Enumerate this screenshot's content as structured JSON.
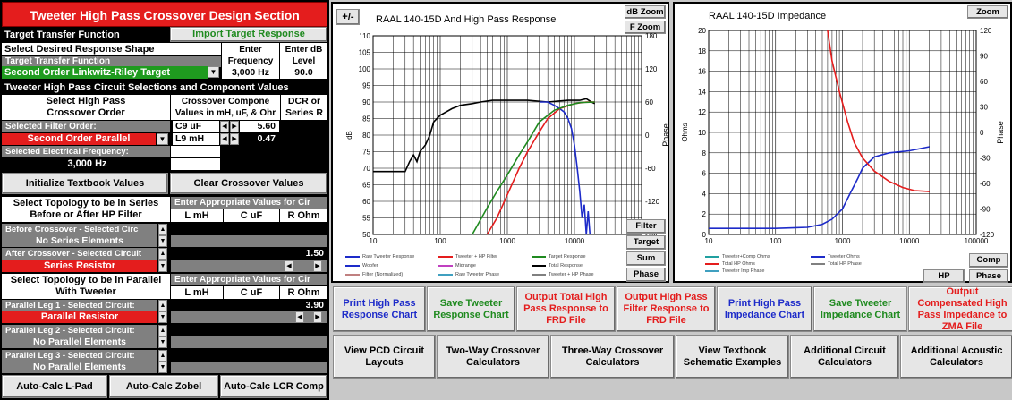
{
  "left": {
    "title": "Tweeter High Pass Crossover Design Section",
    "target_transfer_function": "Target Transfer Function",
    "import_target_response": "Import Target Response",
    "select_response_shape": "Select Desired Response Shape",
    "enter_frequency": "Enter Frequency",
    "enter_db_level": "Enter dB Level",
    "target_transfer_function_2": "Target Transfer Function",
    "target_selected": "Second Order Linkwitz-Riley Target",
    "frequency_value": "3,000 Hz",
    "db_level_value": "90.0",
    "circuit_selections_header": "Tweeter High Pass Circuit Selections and Component Values",
    "select_hp_order_line1": "Select High Pass",
    "select_hp_order_line2": "Crossover Order",
    "crossover_component_line1": "Crossover Compone",
    "crossover_component_line2": "Values in mH, uF, & Ohr",
    "dcr_line1": "DCR or",
    "dcr_line2": "Series R",
    "selected_filter_order_label": "Selected Filter Order:",
    "filter_order_value": "Second Order Parallel",
    "comp1_label": "C9  uF",
    "comp1_value": "5.60",
    "comp2_label": "L9 mH",
    "comp2_value": "0.47",
    "selected_elec_freq_label": "Selected Electrical Frequency:",
    "elec_freq_value": "3,000 Hz",
    "initialize_textbook_values": "Initialize Textbook Values",
    "clear_crossover_values": "Clear Crossover Values",
    "series_topology_line1": "Select Topology to be in Series",
    "series_topology_line2": "Before or After HP Filter",
    "enter_values_header": "Enter Appropriate Values for Cir",
    "col_l": "L mH",
    "col_c": "C uF",
    "col_r": "R Ohm",
    "before_crossover_label": "Before Crossover - Selected Circ",
    "before_crossover_value": "No Series Elements",
    "after_crossover_label": "After Crossover - Selected Circuit",
    "after_crossover_value": "Series Resistor",
    "after_r_value": "1.50",
    "parallel_topology_line1": "Select Topology to be in Parallel",
    "parallel_topology_line2": "With Tweeter",
    "enter_values_header_2": "Enter Appropriate Values for Cir",
    "leg1_label": "Parallel Leg 1 - Selected Circuit:",
    "leg1_value": "Parallel Resistor",
    "leg1_r_value": "3.90",
    "leg2_label": "Parallel Leg 2 - Selected Circuit:",
    "leg2_value": "No Parallel Elements",
    "leg3_label": "Parallel Leg 3 - Selected Circuit:",
    "leg3_value": "No Parallel Elements",
    "auto_calc_lpad": "Auto-Calc L-Pad",
    "auto_calc_zobel": "Auto-Calc Zobel",
    "auto_calc_lcr": "Auto-Calc LCR Comp"
  },
  "chart1": {
    "plus_minus": "+/-",
    "title": "RAAL 140-15D  And High Pass Response",
    "db_zoom": "dB Zoom",
    "f_zoom": "F Zoom",
    "ylabel": "dB",
    "y2label": "Phase",
    "filter_btn": "Filter",
    "target_btn": "Target",
    "sum_btn": "Sum",
    "phase_btn": "Phase",
    "legend": [
      {
        "name": "Raw Tweeter Response",
        "color": "#1d2bc9"
      },
      {
        "name": "Tweeter + HP Filter",
        "color": "#e41d1d"
      },
      {
        "name": "Target Response",
        "color": "#1f8a1f"
      },
      {
        "name": "Woofer",
        "color": "#1d2bc9"
      },
      {
        "name": "Midrange",
        "color": "#c040c0"
      },
      {
        "name": "Total Response",
        "color": "#000000"
      },
      {
        "name": "Filter (Normalized)",
        "color": "#c08080"
      },
      {
        "name": "Raw Tweeter Phase",
        "color": "#40a0c0"
      },
      {
        "name": "Tweeter + HP Phase",
        "color": "#808080"
      }
    ]
  },
  "chart2": {
    "title": "RAAL 140-15D  Impedance",
    "zoom": "Zoom",
    "ylabel": "Ohms",
    "y2label": "Phase",
    "comp_btn": "Comp",
    "phase_btn": "Phase",
    "hp_btn": "HP",
    "legend": [
      {
        "name": "Tweeter+Comp Ohms",
        "color": "#20a0a0"
      },
      {
        "name": "Tweeter Ohms",
        "color": "#1d2bc9"
      },
      {
        "name": "Total HP Ohms",
        "color": "#e41d1d"
      },
      {
        "name": "Total HP Phase",
        "color": "#808080"
      },
      {
        "name": "Tweeter Imp Phase",
        "color": "#40a0c0"
      }
    ]
  },
  "bottom_buttons_row1": [
    {
      "label": "Print High Pass Response Chart",
      "color": "blue"
    },
    {
      "label": "Save Tweeter Response Chart",
      "color": "green"
    },
    {
      "label": "Output Total High Pass Response to FRD File",
      "color": "red"
    },
    {
      "label": "Output High Pass Filter Response to FRD File",
      "color": "red"
    },
    {
      "label": "Print High Pass Impedance Chart",
      "color": "blue"
    },
    {
      "label": "Save Tweeter Impedance Chart",
      "color": "green"
    },
    {
      "label": "Output Compensated High Pass Impedance to ZMA File",
      "color": "red"
    }
  ],
  "bottom_buttons_row2": [
    {
      "label": "View PCD Circuit Layouts"
    },
    {
      "label": "Two-Way Crossover Calculators"
    },
    {
      "label": "Three-Way Crossover Calculators"
    },
    {
      "label": "View Textbook Schematic Examples"
    },
    {
      "label": "Additional Circuit Calculators"
    },
    {
      "label": "Additional Acoustic Calculators"
    }
  ],
  "chart_data": [
    {
      "type": "line",
      "title": "RAAL 140-15D  And High Pass Response",
      "xscale": "log",
      "xlim": [
        10,
        100000
      ],
      "ylim": [
        50,
        110
      ],
      "y2lim": [
        -180,
        180
      ],
      "ylabel": "dB",
      "y2label": "Phase",
      "x_ticks": [
        "10",
        "100",
        "1000",
        "10000",
        "100000"
      ],
      "y_ticks": [
        50,
        55,
        60,
        65,
        70,
        75,
        80,
        85,
        90,
        95,
        100,
        105,
        110
      ],
      "y2_ticks": [
        -180,
        -120,
        -60,
        0,
        60,
        120,
        180
      ],
      "grid": true,
      "legend_position": "bottom",
      "series": [
        {
          "name": "Total Response",
          "color": "#000000",
          "x": [
            10,
            20,
            30,
            35,
            40,
            45,
            50,
            60,
            70,
            80,
            100,
            150,
            200,
            300,
            400,
            600,
            1000,
            2000,
            4000,
            8000,
            12000,
            15000,
            18000,
            20000
          ],
          "y": [
            69,
            69,
            69,
            72,
            74,
            72,
            75,
            77,
            80,
            84,
            86,
            88,
            89,
            89.5,
            90,
            90.5,
            90.5,
            90.5,
            90,
            90.5,
            90.5,
            91,
            90,
            89.5
          ]
        },
        {
          "name": "Raw Tweeter Response",
          "color": "#1d2bc9",
          "x": [
            3000,
            4000,
            5000,
            6000,
            7000,
            8000,
            9000,
            10000,
            11000,
            12000,
            13000,
            14000,
            15000,
            16000,
            17000
          ],
          "y": [
            90,
            90,
            89,
            88,
            87,
            85,
            82,
            77,
            70,
            63,
            55,
            59,
            50,
            57,
            50
          ]
        },
        {
          "name": "Tweeter + HP Filter",
          "color": "#e41d1d",
          "x": [
            500,
            700,
            1000,
            1500,
            2000,
            3000,
            4000,
            6000,
            10000,
            15000,
            20000
          ],
          "y": [
            50,
            55,
            62,
            70,
            75,
            81,
            85,
            88,
            89.5,
            90,
            90
          ]
        },
        {
          "name": "Target Response",
          "color": "#1f8a1f",
          "x": [
            300,
            500,
            700,
            1000,
            1500,
            2000,
            3000,
            5000,
            8000,
            12000,
            20000
          ],
          "y": [
            50,
            58,
            63,
            68,
            74,
            78,
            84,
            87.5,
            89,
            89.8,
            90
          ]
        }
      ]
    },
    {
      "type": "line",
      "title": "RAAL 140-15D  Impedance",
      "xscale": "log",
      "xlim": [
        10,
        100000
      ],
      "ylim": [
        0,
        20
      ],
      "y2lim": [
        -120,
        120
      ],
      "ylabel": "Ohms",
      "y2label": "Phase",
      "x_ticks": [
        "10",
        "100",
        "1000",
        "10000",
        "100000"
      ],
      "y_ticks": [
        0,
        2,
        4,
        6,
        8,
        10,
        12,
        14,
        16,
        18,
        20
      ],
      "y2_ticks": [
        -120,
        -90,
        -60,
        -30,
        0,
        30,
        60,
        90,
        120
      ],
      "grid": true,
      "legend_position": "bottom",
      "series": [
        {
          "name": "Tweeter Ohms",
          "color": "#1d2bc9",
          "x": [
            10,
            100,
            300,
            500,
            700,
            1000,
            1300,
            1700,
            2000,
            3000,
            5000,
            10000,
            20000
          ],
          "y": [
            0.6,
            0.6,
            0.7,
            1.0,
            1.5,
            2.5,
            4.0,
            5.5,
            6.5,
            7.6,
            8.0,
            8.2,
            8.6
          ]
        },
        {
          "name": "Total HP Ohms",
          "color": "#e41d1d",
          "x": [
            600,
            700,
            900,
            1200,
            1500,
            2000,
            3000,
            5000,
            8000,
            12000,
            20000
          ],
          "y": [
            20,
            17,
            14,
            11,
            9,
            7.5,
            6.2,
            5.2,
            4.6,
            4.3,
            4.2
          ]
        }
      ]
    }
  ]
}
